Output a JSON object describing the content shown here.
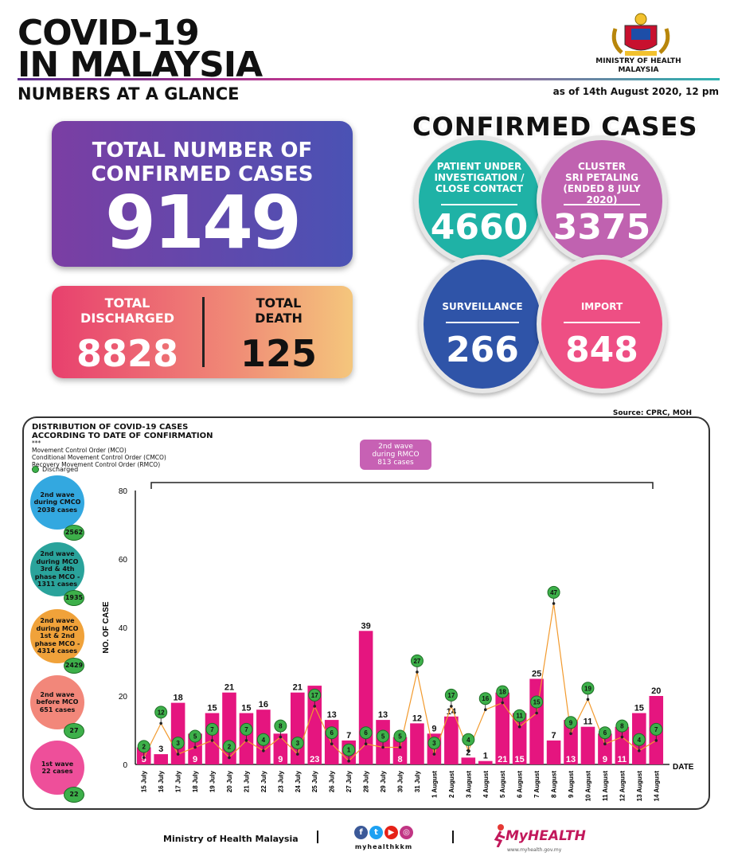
{
  "header": {
    "title_line1": "COVID-19",
    "title_line2": "IN MALAYSIA",
    "subtitle": "NUMBERS AT A GLANCE",
    "as_of": "as of 14th August 2020, 12 pm",
    "ministry": "MINISTRY OF HEALTH\nMALAYSIA"
  },
  "totals": {
    "confirmed_label": "TOTAL NUMBER OF\nCONFIRMED CASES",
    "confirmed_value": "9149",
    "discharged_label": "TOTAL\nDISCHARGED",
    "discharged_value": "8828",
    "death_label": "TOTAL\nDEATH",
    "death_value": "125"
  },
  "confirmed_cases": {
    "title": "CONFIRMED CASES",
    "pui_label": "PATIENT UNDER\nINVESTIGATION /\nCLOSE CONTACT",
    "pui_value": "4660",
    "cluster_label": "CLUSTER\nSRI PETALING\n(ENDED 8 JULY 2020)",
    "cluster_value": "3375",
    "surveillance_label": "SURVEILLANCE",
    "surveillance_value": "266",
    "import_label": "IMPORT",
    "import_value": "848",
    "colors": {
      "pui": "#1fb2a6",
      "cluster": "#c062b0",
      "surveillance": "#2f54a8",
      "import": "#ee4f84"
    }
  },
  "source": "Source: CPRC, MOH",
  "panel": {
    "title": "DISTRIBUTION OF COVID-19 CASES\nACCORDING TO DATE OF CONFIRMATION",
    "legend": "***\nMovement Control Order (MCO)\nConditional Movement Control Order (CMCO)\nRecovery Movement Control Order (RMCO)",
    "discharged": "Discharged",
    "rmco_box": "2nd wave\nduring RMCO\n813 cases",
    "waves": [
      {
        "label": "2nd wave\nduring CMCO\n2038 cases",
        "discharged": "2562",
        "color": "#33a8e0"
      },
      {
        "label": "2nd wave\nduring MCO\n3rd & 4th\nphase MCO -\n1311 cases",
        "discharged": "1935",
        "color": "#2aa39b"
      },
      {
        "label": "2nd wave\nduring MCO\n1st & 2nd\nphase MCO -\n4314 cases",
        "discharged": "2429",
        "color": "#f0a23a"
      },
      {
        "label": "2nd wave\nbefore MCO\n651 cases",
        "discharged": "27",
        "color": "#f2877a"
      },
      {
        "label": "1st wave\n22 cases",
        "discharged": "22",
        "color": "#ee4f9a"
      }
    ]
  },
  "chart_data": {
    "type": "bar",
    "xlabel": "DATE",
    "ylabel": "NO. OF CASE",
    "ylim": [
      0,
      80
    ],
    "yticks": [
      0,
      20,
      40,
      60,
      80
    ],
    "categories": [
      "15 July",
      "16 July",
      "17 July",
      "18 July",
      "19 July",
      "20 July",
      "21 July",
      "22 July",
      "23 July",
      "24 July",
      "25 July",
      "26 July",
      "27 July",
      "28 July",
      "29 July",
      "30 July",
      "31 July",
      "1 August",
      "2 August",
      "3 August",
      "4 August",
      "5 August",
      "6 August",
      "7 August",
      "8 August",
      "9 August",
      "10 August",
      "11 August",
      "12 August",
      "13 August",
      "14 August"
    ],
    "series": [
      {
        "values": [
          5,
          3,
          18,
          9,
          15,
          21,
          15,
          16,
          9,
          21,
          23,
          13,
          7,
          39,
          13,
          8,
          12,
          9,
          14,
          2,
          1,
          21,
          15,
          25,
          7,
          13,
          11,
          9,
          11,
          15,
          20
        ],
        "color": "#e5157f"
      },
      {
        "name": "Discharged",
        "values": [
          2,
          12,
          3,
          5,
          7,
          2,
          7,
          4,
          8,
          3,
          17,
          6,
          1,
          6,
          5,
          5,
          27,
          3,
          17,
          4,
          16,
          18,
          11,
          15,
          47,
          9,
          19,
          6,
          8,
          4,
          7
        ],
        "color": "#3db04a"
      }
    ]
  },
  "footer": {
    "ministry": "Ministry of Health Malaysia",
    "handle": "myhealthkkm",
    "brand_my": "My",
    "brand_health": "HEALTH",
    "brand_sub": "www.myhealth.gov.my"
  }
}
